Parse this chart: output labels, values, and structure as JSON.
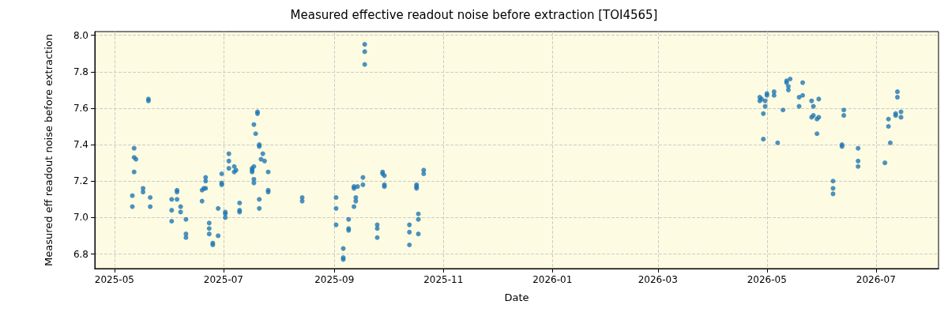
{
  "chart_data": {
    "type": "scatter",
    "title": "Measured effective readout noise before extraction [TOI4565]",
    "xlabel": "Date",
    "ylabel": "Measured eff readout noise before extraction",
    "x": [
      "2025-05-11",
      "2025-05-11",
      "2025-05-12",
      "2025-05-12",
      "2025-05-12",
      "2025-05-13",
      "2025-05-17",
      "2025-05-17",
      "2025-05-20",
      "2025-05-20",
      "2025-05-21",
      "2025-05-21",
      "2025-06-02",
      "2025-06-02",
      "2025-06-02",
      "2025-06-05",
      "2025-06-05",
      "2025-06-05",
      "2025-06-07",
      "2025-06-07",
      "2025-06-10",
      "2025-06-10",
      "2025-06-10",
      "2025-06-19",
      "2025-06-19",
      "2025-06-20",
      "2025-06-21",
      "2025-06-21",
      "2025-06-21",
      "2025-06-23",
      "2025-06-23",
      "2025-06-23",
      "2025-06-25",
      "2025-06-25",
      "2025-06-28",
      "2025-06-28",
      "2025-06-30",
      "2025-06-30",
      "2025-06-30",
      "2025-07-02",
      "2025-07-02",
      "2025-07-02",
      "2025-07-04",
      "2025-07-04",
      "2025-07-04",
      "2025-07-07",
      "2025-07-07",
      "2025-07-08",
      "2025-07-10",
      "2025-07-10",
      "2025-07-10",
      "2025-07-17",
      "2025-07-17",
      "2025-07-17",
      "2025-07-18",
      "2025-07-18",
      "2025-07-18",
      "2025-07-18",
      "2025-07-19",
      "2025-07-20",
      "2025-07-20",
      "2025-07-21",
      "2025-07-21",
      "2025-07-21",
      "2025-07-21",
      "2025-07-22",
      "2025-07-23",
      "2025-07-24",
      "2025-07-26",
      "2025-07-26",
      "2025-07-26",
      "2025-08-14",
      "2025-08-14",
      "2025-09-02",
      "2025-09-02",
      "2025-09-02",
      "2025-09-06",
      "2025-09-06",
      "2025-09-06",
      "2025-09-09",
      "2025-09-09",
      "2025-09-09",
      "2025-09-12",
      "2025-09-12",
      "2025-09-12",
      "2025-09-13",
      "2025-09-13",
      "2025-09-14",
      "2025-09-17",
      "2025-09-17",
      "2025-09-18",
      "2025-09-18",
      "2025-09-18",
      "2025-09-25",
      "2025-09-25",
      "2025-09-25",
      "2025-09-28",
      "2025-09-28",
      "2025-09-29",
      "2025-09-29",
      "2025-09-29",
      "2025-10-13",
      "2025-10-13",
      "2025-10-13",
      "2025-10-17",
      "2025-10-17",
      "2025-10-17",
      "2025-10-18",
      "2025-10-18",
      "2025-10-18",
      "2025-10-21",
      "2025-10-21",
      "2026-04-27",
      "2026-04-27",
      "2026-04-28",
      "2026-04-30",
      "2026-04-30",
      "2026-04-29",
      "2026-04-29",
      "2026-05-01",
      "2026-05-01",
      "2026-05-05",
      "2026-05-05",
      "2026-05-07",
      "2026-05-10",
      "2026-05-12",
      "2026-05-12",
      "2026-05-14",
      "2026-05-13",
      "2026-05-13",
      "2026-05-21",
      "2026-05-19",
      "2026-05-21",
      "2026-05-19",
      "2026-05-26",
      "2026-05-30",
      "2026-05-27",
      "2026-05-26",
      "2026-05-27",
      "2026-05-29",
      "2026-05-30",
      "2026-05-29",
      "2026-06-07",
      "2026-06-07",
      "2026-06-07",
      "2026-06-12",
      "2026-06-12",
      "2026-06-13",
      "2026-06-13",
      "2026-06-21",
      "2026-06-21",
      "2026-06-21",
      "2026-07-06",
      "2026-07-09",
      "2026-07-08",
      "2026-07-08",
      "2026-07-12",
      "2026-07-12",
      "2026-07-13",
      "2026-07-13",
      "2026-07-15",
      "2026-07-15"
    ],
    "values": [
      7.12,
      7.06,
      7.25,
      7.33,
      7.38,
      7.32,
      7.16,
      7.14,
      7.64,
      7.65,
      7.11,
      7.06,
      6.98,
      7.04,
      7.1,
      7.15,
      7.14,
      7.1,
      7.06,
      7.03,
      6.99,
      6.91,
      6.89,
      7.09,
      7.15,
      7.16,
      7.22,
      7.2,
      7.16,
      6.97,
      6.94,
      6.91,
      6.86,
      6.85,
      7.05,
      6.9,
      7.19,
      7.18,
      7.24,
      7.02,
      7.0,
      7.03,
      7.35,
      7.31,
      7.27,
      7.28,
      7.25,
      7.26,
      7.08,
      7.04,
      7.03,
      7.27,
      7.25,
      7.26,
      7.28,
      7.21,
      7.19,
      7.51,
      7.46,
      7.58,
      7.57,
      7.4,
      7.39,
      7.1,
      7.05,
      7.32,
      7.35,
      7.31,
      7.15,
      7.14,
      7.25,
      7.11,
      7.09,
      7.11,
      7.05,
      6.96,
      6.83,
      6.78,
      6.77,
      6.99,
      6.94,
      6.93,
      7.16,
      7.06,
      7.17,
      7.11,
      7.09,
      7.17,
      7.22,
      7.18,
      7.95,
      7.91,
      7.84,
      6.96,
      6.94,
      6.89,
      7.25,
      7.24,
      7.23,
      7.18,
      7.17,
      6.96,
      6.92,
      6.85,
      7.18,
      7.17,
      7.16,
      7.02,
      6.99,
      6.91,
      7.26,
      7.24,
      7.66,
      7.64,
      7.65,
      7.64,
      7.61,
      7.57,
      7.43,
      7.68,
      7.67,
      7.69,
      7.67,
      7.41,
      7.59,
      7.75,
      7.74,
      7.76,
      7.72,
      7.7,
      7.74,
      7.66,
      7.67,
      7.61,
      7.64,
      7.65,
      7.61,
      7.55,
      7.56,
      7.54,
      7.55,
      7.46,
      7.2,
      7.16,
      7.13,
      7.4,
      7.39,
      7.59,
      7.56,
      7.38,
      7.31,
      7.28,
      7.3,
      7.41,
      7.5,
      7.54,
      7.57,
      7.56,
      7.69,
      7.66,
      7.58,
      7.55
    ],
    "color": "#1f77b4",
    "marker": "circle",
    "grid": true,
    "xlim": [
      "2025-04-20",
      "2026-08-05"
    ],
    "xticks": [
      "2025-05",
      "2025-07",
      "2025-09",
      "2025-11",
      "2026-01",
      "2026-03",
      "2026-05",
      "2026-07"
    ],
    "ylim": [
      6.72,
      8.02
    ],
    "yticks": [
      6.8,
      {
        "value": 7,
        "label": "7.0"
      },
      7.2,
      7.4,
      7.6,
      7.8,
      {
        "value": 8,
        "label": "8.0"
      }
    ]
  }
}
